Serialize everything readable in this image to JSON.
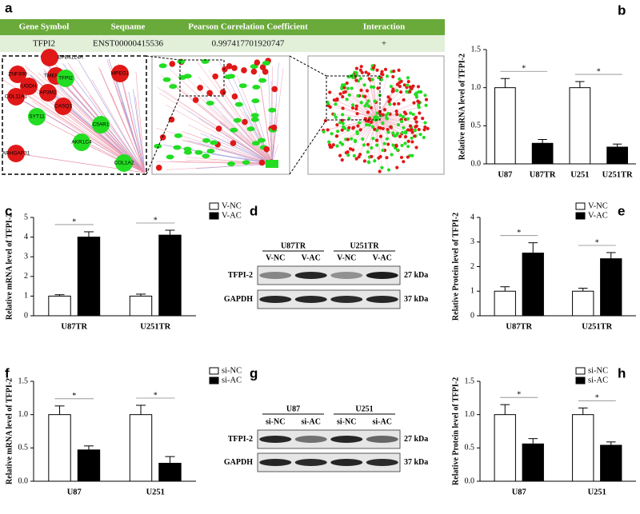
{
  "panel_labels": [
    "a",
    "b",
    "c",
    "d",
    "e",
    "f",
    "g",
    "h"
  ],
  "table": {
    "header": [
      "Gene Symbol",
      "Seqname",
      "Pearson Correlation Coefficient",
      "Interaction"
    ],
    "rows": [
      [
        "TFPI2",
        "ENST00000415536",
        "0.997417701920747",
        "+"
      ]
    ]
  },
  "network": {
    "genes": [
      "EPB41L4A",
      "ZNF300",
      "TMEM246",
      "TFPI2",
      "MPEG1",
      "UGDH",
      "COL11A1",
      "AP3M1",
      "CASQ1",
      "SYT11",
      "C5AR1",
      "AKR1C4",
      "COL1A2",
      "ARHGAP31"
    ]
  },
  "blots": [
    {
      "groups": [
        "U87TR",
        "U251TR"
      ],
      "lanes": [
        "V-NC",
        "V-AC",
        "V-NC",
        "V-AC"
      ],
      "rows": [
        {
          "name": "TFPI-2",
          "size": "27 kDa"
        },
        {
          "name": "GAPDH",
          "size": "37 kDa"
        }
      ]
    },
    {
      "groups": [
        "U87",
        "U251"
      ],
      "lanes": [
        "si-NC",
        "si-AC",
        "si-NC",
        "si-AC"
      ],
      "rows": [
        {
          "name": "TFPI-2",
          "size": "27 kDa"
        },
        {
          "name": "GAPDH",
          "size": "37 kDa"
        }
      ]
    }
  ],
  "chart_data": [
    {
      "type": "bar",
      "ylabel": "Relative mRNA level of TFPI-2",
      "categories": [
        "U87",
        "U87TR",
        "U251",
        "U251TR"
      ],
      "values": [
        1.0,
        0.27,
        1.0,
        0.22
      ],
      "errors": [
        0.12,
        0.05,
        0.08,
        0.04
      ],
      "colors": [
        "#ffffff",
        "#000000",
        "#ffffff",
        "#000000"
      ],
      "significance": [
        "*",
        "*"
      ],
      "ylim": [
        0,
        1.5
      ],
      "yticks": [
        {
          "value": 0,
          "label": "0.0"
        },
        {
          "value": 0.5,
          "label": "0.5"
        },
        {
          "value": 1,
          "label": "1.0"
        },
        {
          "value": 1.5,
          "label": "1.5"
        }
      ]
    },
    {
      "type": "bar",
      "ylabel": "Relative mRNA level of TFPI-2",
      "categories": [
        "U87TR",
        "U251TR"
      ],
      "series": [
        {
          "name": "V-NC",
          "color": "#ffffff",
          "values": [
            1.0,
            1.0
          ],
          "errors": [
            0.07,
            0.1
          ]
        },
        {
          "name": "V-AC",
          "color": "#000000",
          "values": [
            4.0,
            4.1
          ],
          "errors": [
            0.27,
            0.25
          ]
        }
      ],
      "significance": [
        "*",
        "*"
      ],
      "legend": "upper right",
      "ylim": [
        0,
        5
      ],
      "yticks": [
        0,
        1,
        2,
        3,
        4,
        5
      ]
    },
    {
      "type": "bar",
      "ylabel": "Relative Protein level of TFPI-2",
      "categories": [
        "U87TR",
        "U251TR"
      ],
      "series": [
        {
          "name": "V-NC",
          "color": "#ffffff",
          "values": [
            1.0,
            1.0
          ],
          "errors": [
            0.18,
            0.12
          ]
        },
        {
          "name": "V-AC",
          "color": "#000000",
          "values": [
            2.55,
            2.32
          ],
          "errors": [
            0.42,
            0.25
          ]
        }
      ],
      "significance": [
        "*",
        "*"
      ],
      "legend": "upper right",
      "ylim": [
        0,
        4
      ],
      "yticks": [
        0,
        1,
        2,
        3,
        4
      ]
    },
    {
      "type": "bar",
      "ylabel": "Relative mRNA level of TFPI-2",
      "categories": [
        "U87",
        "U251"
      ],
      "series": [
        {
          "name": "si-NC",
          "color": "#ffffff",
          "values": [
            1.0,
            1.0
          ],
          "errors": [
            0.13,
            0.14
          ]
        },
        {
          "name": "si-AC",
          "color": "#000000",
          "values": [
            0.47,
            0.27
          ],
          "errors": [
            0.06,
            0.1
          ]
        }
      ],
      "significance": [
        "*",
        "*"
      ],
      "legend": "upper right",
      "ylim": [
        0,
        1.5
      ],
      "yticks": [
        {
          "value": 0,
          "label": "0.0"
        },
        {
          "value": 0.5,
          "label": "0.5"
        },
        {
          "value": 1,
          "label": "1.0"
        },
        {
          "value": 1.5,
          "label": "1.5"
        }
      ]
    },
    {
      "type": "bar",
      "ylabel": "Relative Protein level of TFPI-2",
      "categories": [
        "U87",
        "U251"
      ],
      "series": [
        {
          "name": "si-NC",
          "color": "#ffffff",
          "values": [
            1.0,
            1.0
          ],
          "errors": [
            0.15,
            0.1
          ]
        },
        {
          "name": "si-AC",
          "color": "#000000",
          "values": [
            0.56,
            0.54
          ],
          "errors": [
            0.08,
            0.05
          ]
        }
      ],
      "significance": [
        "*",
        "*"
      ],
      "legend": "upper right",
      "ylim": [
        0,
        1.5
      ],
      "yticks": [
        {
          "value": 0,
          "label": "0.0"
        },
        {
          "value": 0.5,
          "label": "0.5"
        },
        {
          "value": 1,
          "label": "1.0"
        },
        {
          "value": 1.5,
          "label": "1.5"
        }
      ]
    }
  ]
}
